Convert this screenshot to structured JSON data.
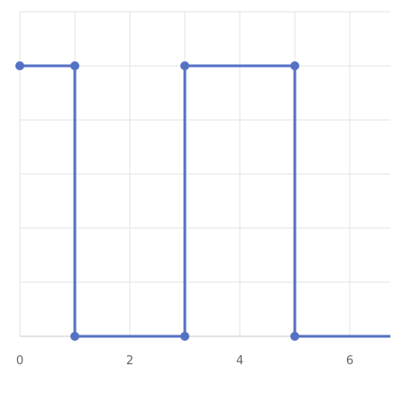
{
  "chart_data": {
    "type": "line",
    "title": "",
    "xlabel": "",
    "ylabel": "",
    "step": "after",
    "xlim": [
      0,
      6.7
    ],
    "ylim": [
      0,
      5
    ],
    "x_ticks": [
      0,
      2,
      4,
      6
    ],
    "y_ticks": [
      0,
      1,
      2,
      3,
      4,
      5
    ],
    "y_tick_labels_shown": false,
    "grid": true,
    "legend": "none",
    "series": [
      {
        "color": "#5472c4",
        "points": [
          {
            "x": 0,
            "y": 5
          },
          {
            "x": 1,
            "y": 5
          },
          {
            "x": 1,
            "y": 0
          },
          {
            "x": 3,
            "y": 0
          },
          {
            "x": 3,
            "y": 5
          },
          {
            "x": 5,
            "y": 5
          },
          {
            "x": 5,
            "y": 0
          }
        ],
        "extends_to_edge": true
      }
    ]
  }
}
